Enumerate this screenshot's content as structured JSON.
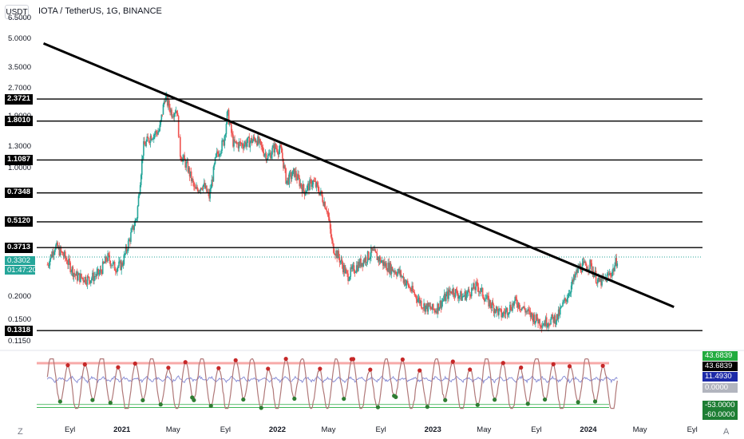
{
  "header": {
    "currency_button": "USDT",
    "title": "IOTA / TetherUS, 1G, BINANCE"
  },
  "colors": {
    "up": "#26a69a",
    "down": "#ef5350",
    "line": "#000000",
    "osc": "#b07878",
    "mid": "#8a8fd6"
  },
  "chart_data": {
    "type": "candlestick",
    "y_scale": "log",
    "ylim": [
      0.105,
      8.0
    ],
    "y_ticks": [
      "6.5000",
      "5.0000",
      "3.5000",
      "2.7000",
      "1.9000",
      "1.3000",
      "1.0000",
      "0.7348",
      "0.5120",
      "0.3713",
      "0.2700",
      "0.2000",
      "0.1500",
      "0.1150"
    ],
    "price_levels": [
      "2.3721",
      "1.8010",
      "1.1087",
      "0.7348",
      "0.5120",
      "0.3713",
      "0.1318"
    ],
    "current_price": "0.3302",
    "countdown": "01:47:20",
    "trendline": {
      "start": {
        "date": "2020-07-01",
        "price": 4.75
      },
      "end": {
        "date": "2024-07-20",
        "price": 0.177
      }
    },
    "x_labels": [
      {
        "date": "2020-09-01",
        "label": "Eyl"
      },
      {
        "date": "2021-01-01",
        "label": "2021"
      },
      {
        "date": "2021-05-01",
        "label": "May"
      },
      {
        "date": "2021-09-01",
        "label": "Eyl"
      },
      {
        "date": "2022-01-01",
        "label": "2022"
      },
      {
        "date": "2022-05-01",
        "label": "May"
      },
      {
        "date": "2022-09-01",
        "label": "Eyl"
      },
      {
        "date": "2023-01-01",
        "label": "2023"
      },
      {
        "date": "2023-05-01",
        "label": "May"
      },
      {
        "date": "2023-09-01",
        "label": "Eyl"
      },
      {
        "date": "2024-01-01",
        "label": "2024"
      },
      {
        "date": "2024-05-01",
        "label": "May"
      },
      {
        "date": "2024-09-01",
        "label": "Eyl"
      }
    ],
    "price_path": [
      [
        "2020-07-10",
        0.3
      ],
      [
        "2020-07-28",
        0.38
      ],
      [
        "2020-08-20",
        0.33
      ],
      [
        "2020-09-15",
        0.26
      ],
      [
        "2020-10-15",
        0.25
      ],
      [
        "2020-11-10",
        0.27
      ],
      [
        "2020-11-28",
        0.33
      ],
      [
        "2020-12-15",
        0.29
      ],
      [
        "2021-01-01",
        0.3
      ],
      [
        "2021-01-20",
        0.42
      ],
      [
        "2021-02-05",
        0.55
      ],
      [
        "2021-02-20",
        1.3
      ],
      [
        "2021-03-10",
        1.5
      ],
      [
        "2021-03-30",
        1.6
      ],
      [
        "2021-04-12",
        2.45
      ],
      [
        "2021-04-28",
        2.0
      ],
      [
        "2021-05-10",
        2.1
      ],
      [
        "2021-05-18",
        1.2
      ],
      [
        "2021-06-05",
        1.0
      ],
      [
        "2021-06-22",
        0.75
      ],
      [
        "2021-07-10",
        0.82
      ],
      [
        "2021-07-25",
        0.7
      ],
      [
        "2021-08-10",
        1.15
      ],
      [
        "2021-08-28",
        1.4
      ],
      [
        "2021-09-06",
        2.0
      ],
      [
        "2021-09-20",
        1.35
      ],
      [
        "2021-10-10",
        1.35
      ],
      [
        "2021-10-30",
        1.4
      ],
      [
        "2021-11-12",
        1.45
      ],
      [
        "2021-11-28",
        1.25
      ],
      [
        "2021-12-10",
        1.15
      ],
      [
        "2021-12-25",
        1.3
      ],
      [
        "2022-01-10",
        1.25
      ],
      [
        "2022-01-22",
        0.85
      ],
      [
        "2022-02-10",
        0.95
      ],
      [
        "2022-03-05",
        0.75
      ],
      [
        "2022-03-25",
        0.85
      ],
      [
        "2022-04-10",
        0.75
      ],
      [
        "2022-04-28",
        0.6
      ],
      [
        "2022-05-10",
        0.38
      ],
      [
        "2022-05-25",
        0.33
      ],
      [
        "2022-06-14",
        0.26
      ],
      [
        "2022-07-10",
        0.3
      ],
      [
        "2022-08-12",
        0.35
      ],
      [
        "2022-09-10",
        0.3
      ],
      [
        "2022-10-15",
        0.27
      ],
      [
        "2022-11-10",
        0.22
      ],
      [
        "2022-12-10",
        0.18
      ],
      [
        "2023-01-05",
        0.17
      ],
      [
        "2023-02-15",
        0.22
      ],
      [
        "2023-03-10",
        0.2
      ],
      [
        "2023-04-15",
        0.23
      ],
      [
        "2023-05-10",
        0.19
      ],
      [
        "2023-06-12",
        0.16
      ],
      [
        "2023-07-15",
        0.19
      ],
      [
        "2023-08-18",
        0.16
      ],
      [
        "2023-09-15",
        0.145
      ],
      [
        "2023-10-20",
        0.155
      ],
      [
        "2023-11-15",
        0.21
      ],
      [
        "2023-12-10",
        0.29
      ],
      [
        "2024-01-05",
        0.3
      ],
      [
        "2024-01-25",
        0.24
      ],
      [
        "2024-02-10",
        0.25
      ],
      [
        "2024-02-28",
        0.28
      ],
      [
        "2024-03-10",
        0.33
      ]
    ],
    "oscillator": {
      "upper_levels": [
        "43.6839",
        "43.6839"
      ],
      "lower_levels": [
        "-53.0000",
        "-60.0000"
      ],
      "labels": {
        "top": "43.6839",
        "main": "43.6839",
        "mid": "11.4930",
        "zero": "0.0000",
        "low1": "-53.0000",
        "low2": "-60.0000"
      }
    },
    "corner_labels": {
      "left": "Z",
      "right": "A"
    }
  }
}
